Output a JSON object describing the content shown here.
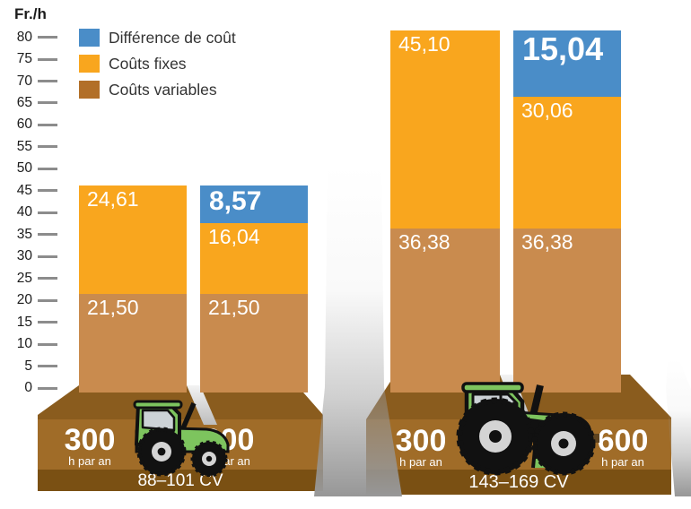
{
  "axis": {
    "unit_label": "Fr./h",
    "tick_values": [
      80,
      75,
      70,
      65,
      60,
      55,
      50,
      45,
      40,
      35,
      30,
      25,
      20,
      15,
      10,
      5,
      0
    ]
  },
  "legend": {
    "items": [
      {
        "label": "Différence de coût",
        "color": "#4a8dc8"
      },
      {
        "label": "Coûts fixes",
        "color": "#f9a61e"
      },
      {
        "label": "Coûts variables",
        "color": "#b26f28"
      }
    ]
  },
  "chart_data": {
    "type": "bar",
    "stacked": true,
    "unit": "Fr./h",
    "ylim": [
      0,
      80
    ],
    "grid": false,
    "legend_position": "top-left",
    "groups": [
      {
        "power_label": "88–101 CV",
        "bars": [
          {
            "hours": "300",
            "hours_unit": "h par an",
            "segments": [
              {
                "series": "Coûts variables",
                "value": 21.5,
                "label": "21,50",
                "color": "#c98b4e",
                "emphasis": false
              },
              {
                "series": "Coûts fixes",
                "value": 24.61,
                "label": "24,61",
                "color": "#f9a61e",
                "emphasis": false
              }
            ]
          },
          {
            "hours": "600",
            "hours_unit": "h par an",
            "segments": [
              {
                "series": "Coûts variables",
                "value": 21.5,
                "label": "21,50",
                "color": "#c98b4e",
                "emphasis": false
              },
              {
                "series": "Coûts fixes",
                "value": 16.04,
                "label": "16,04",
                "color": "#f9a61e",
                "emphasis": false
              },
              {
                "series": "Différence de coût",
                "value": 8.57,
                "label": "8,57",
                "color": "#4a8dc8",
                "emphasis": true
              }
            ]
          }
        ]
      },
      {
        "power_label": "143–169 CV",
        "bars": [
          {
            "hours": "300",
            "hours_unit": "h par an",
            "segments": [
              {
                "series": "Coûts variables",
                "value": 36.38,
                "label": "36,38",
                "color": "#c98b4e",
                "emphasis": false
              },
              {
                "series": "Coûts fixes",
                "value": 45.1,
                "label": "45,10",
                "color": "#f9a61e",
                "emphasis": false
              }
            ]
          },
          {
            "hours": "600",
            "hours_unit": "h par an",
            "segments": [
              {
                "series": "Coûts variables",
                "value": 36.38,
                "label": "36,38",
                "color": "#c98b4e",
                "emphasis": false
              },
              {
                "series": "Coûts fixes",
                "value": 30.06,
                "label": "30,06",
                "color": "#f9a61e",
                "emphasis": false
              },
              {
                "series": "Différence de coût",
                "value": 15.04,
                "label": "15,04",
                "color": "#4a8dc8",
                "emphasis": true
              }
            ]
          }
        ]
      }
    ]
  },
  "colors": {
    "bar_blue": "#4a8dc8",
    "bar_orange": "#f9a61e",
    "bar_tan": "#c98b4e",
    "podium_top": "#8a5c1e",
    "podium_face": "#a06c28",
    "podium_strip": "#7a5013",
    "shadow_gray": "#979797",
    "tractor_green": "#7dc45e",
    "tractor_window": "#ccd2d6",
    "wheel_hub": "#d4d4d4"
  }
}
